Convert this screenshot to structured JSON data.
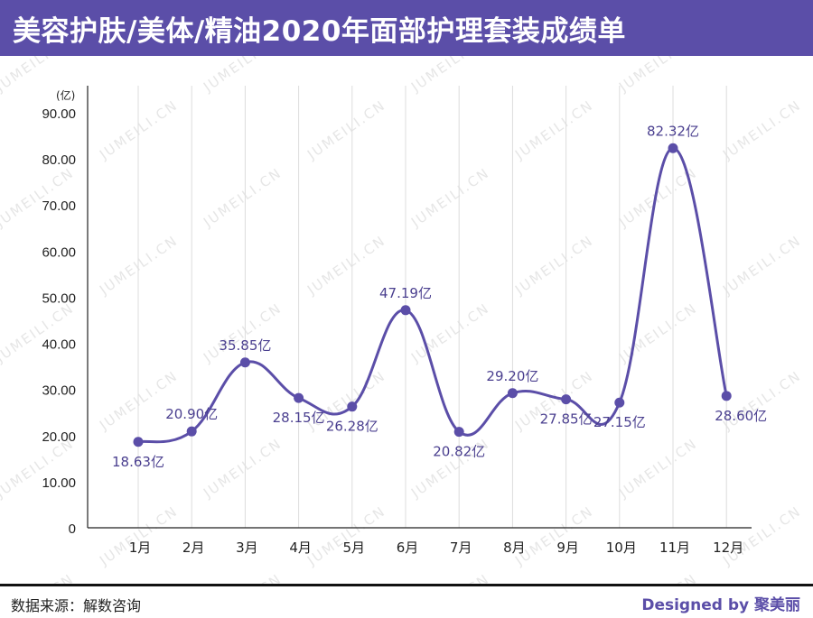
{
  "title": "美容护肤/美体/精油2020年面部护理套装成绩单",
  "watermark": "JUMEILI.CN",
  "footer": {
    "source": "数据来源：解数咨询",
    "credit": "Designed by 聚美丽"
  },
  "colors": {
    "brand": "#5b4ea8",
    "line": "#5b4ea8",
    "grid": "#dddddd",
    "label": "#4a3f8f"
  },
  "chart_data": {
    "type": "line",
    "smooth": true,
    "unit_label": "(亿)",
    "categories": [
      "1月",
      "2月",
      "3月",
      "4月",
      "5月",
      "6月",
      "7月",
      "8月",
      "9月",
      "10月",
      "11月",
      "12月"
    ],
    "values": [
      18.63,
      20.9,
      35.85,
      28.15,
      26.28,
      47.19,
      20.82,
      29.2,
      27.85,
      27.15,
      82.32,
      28.6
    ],
    "data_labels": [
      "18.63亿",
      "20.90亿",
      "35.85亿",
      "28.15亿",
      "26.28亿",
      "47.19亿",
      "20.82亿",
      "29.20亿",
      "27.85亿",
      "27.15亿",
      "82.32亿",
      "28.60亿"
    ],
    "ylim": [
      0,
      90
    ],
    "y_ticks": [
      "0",
      "10.00",
      "20.00",
      "30.00",
      "40.00",
      "50.00",
      "60.00",
      "70.00",
      "80.00",
      "90.00"
    ],
    "vertical_grid": true,
    "legend": "none"
  }
}
